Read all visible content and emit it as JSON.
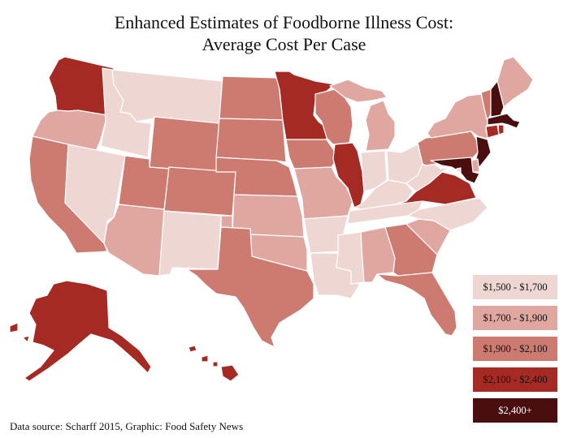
{
  "title": {
    "line1": "Enhanced Estimates of Foodborne Illness Cost:",
    "line2": "Average Cost Per Case"
  },
  "source": "Data source: Scharff 2015, Graphic: Food Safety News",
  "colors": {
    "bin1": "#eed6d3",
    "bin2": "#dfa7a0",
    "bin3": "#cd7b71",
    "bin4": "#a52a23",
    "bin5": "#4a0e0e",
    "border": "#ffffff"
  },
  "legend": [
    {
      "label": "$1,500 - $1,700",
      "bin": "bin1"
    },
    {
      "label": "$1,700 - $1,900",
      "bin": "bin2"
    },
    {
      "label": "$1,900 - $2,100",
      "bin": "bin3"
    },
    {
      "label": "$2,100 - $2,400",
      "bin": "bin4"
    },
    {
      "label": "$2,400+",
      "bin": "bin5"
    }
  ],
  "states": {
    "WA": "bin4",
    "OR": "bin2",
    "CA": "bin3",
    "NV": "bin1",
    "ID": "bin1",
    "MT": "bin1",
    "WY": "bin3",
    "UT": "bin3",
    "AZ": "bin2",
    "CO": "bin3",
    "NM": "bin1",
    "ND": "bin3",
    "SD": "bin3",
    "NE": "bin3",
    "KS": "bin2",
    "OK": "bin2",
    "TX": "bin3",
    "MN": "bin4",
    "IA": "bin3",
    "MO": "bin2",
    "AR": "bin1",
    "LA": "bin1",
    "WI": "bin3",
    "IL": "bin4",
    "MI": "bin2",
    "IN": "bin1",
    "OH": "bin1",
    "KY": "bin1",
    "TN": "bin1",
    "MS": "bin1",
    "AL": "bin2",
    "GA": "bin3",
    "FL": "bin3",
    "SC": "bin2",
    "NC": "bin1",
    "VA": "bin4",
    "WV": "bin1",
    "PA": "bin3",
    "NY": "bin2",
    "VT": "bin3",
    "NH": "bin5",
    "ME": "bin2",
    "MA": "bin5",
    "RI": "bin4",
    "CT": "bin4",
    "NJ": "bin5",
    "DE": "bin2",
    "MD": "bin5",
    "DC": "bin1",
    "AK": "bin4",
    "HI": "bin4"
  }
}
